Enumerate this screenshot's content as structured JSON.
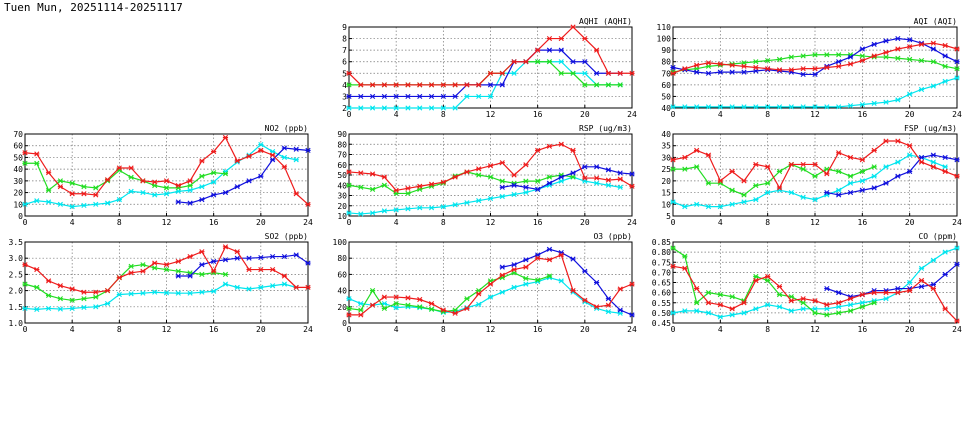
{
  "header": {
    "title": "Tuen Mun, 20251114-20251117"
  },
  "colors": {
    "day1": "#00e5ee",
    "day2": "#22dd22",
    "day3": "#1010dd",
    "day4": "#ee1c1c"
  },
  "chart_data": [
    {
      "type": "line",
      "title": "AQHI (AQHI)",
      "x_ticks": [
        0,
        4,
        8,
        12,
        16,
        20,
        24
      ],
      "ylim": [
        2,
        9
      ],
      "y_ticks": [
        2,
        3,
        4,
        5,
        6,
        7,
        8,
        9
      ],
      "series": [
        {
          "color": "#00e5ee",
          "values": [
            2,
            2,
            2,
            2,
            2,
            2,
            2,
            2,
            2,
            2,
            3,
            3,
            3,
            5,
            5,
            6,
            6,
            6,
            6,
            5,
            5,
            4,
            4,
            4
          ]
        },
        {
          "color": "#22dd22",
          "values": [
            4,
            4,
            4,
            4,
            4,
            4,
            4,
            4,
            4,
            4,
            4,
            4,
            5,
            5,
            6,
            6,
            6,
            6,
            5,
            5,
            4,
            4,
            4,
            4
          ]
        },
        {
          "color": "#1010dd",
          "values": [
            3,
            3,
            3,
            3,
            3,
            3,
            3,
            3,
            3,
            3,
            4,
            4,
            4,
            4,
            6,
            6,
            7,
            7,
            7,
            6,
            6,
            5,
            5,
            5
          ]
        },
        {
          "color": "#ee1c1c",
          "values": [
            5,
            4,
            4,
            4,
            4,
            4,
            4,
            4,
            4,
            4,
            4,
            4,
            5,
            5,
            6,
            6,
            7,
            8,
            8,
            9,
            8,
            7,
            5,
            5,
            5
          ]
        }
      ]
    },
    {
      "type": "line",
      "title": "AQI (AQI)",
      "x_ticks": [
        0,
        4,
        8,
        12,
        16,
        20,
        24
      ],
      "ylim": [
        40,
        110
      ],
      "y_ticks": [
        40,
        50,
        60,
        70,
        80,
        90,
        100,
        110
      ],
      "series": [
        {
          "color": "#00e5ee",
          "values": [
            41,
            41,
            41,
            41,
            41,
            41,
            41,
            41,
            41,
            41,
            41,
            41,
            41,
            41,
            41,
            42,
            43,
            44,
            45,
            47,
            52,
            56,
            59,
            63,
            66
          ]
        },
        {
          "color": "#22dd22",
          "values": [
            71,
            73,
            74,
            76,
            77,
            78,
            79,
            80,
            81,
            82,
            84,
            85,
            86,
            86,
            86,
            86,
            85,
            84,
            84,
            83,
            82,
            81,
            80,
            76,
            74
          ]
        },
        {
          "color": "#1010dd",
          "values": [
            75,
            73,
            71,
            70,
            71,
            71,
            71,
            72,
            73,
            72,
            71,
            69,
            69,
            76,
            80,
            84,
            91,
            95,
            98,
            100,
            99,
            96,
            91,
            85,
            80
          ]
        },
        {
          "color": "#ee1c1c",
          "values": [
            70,
            74,
            77,
            79,
            78,
            77,
            76,
            75,
            74,
            73,
            73,
            74,
            74,
            75,
            76,
            78,
            81,
            85,
            88,
            91,
            93,
            95,
            96,
            94,
            91
          ]
        }
      ]
    },
    {
      "type": "line",
      "title": "NO2 (ppb)",
      "x_ticks": [
        0,
        4,
        8,
        12,
        16,
        20,
        24
      ],
      "ylim": [
        0,
        70
      ],
      "y_ticks": [
        0,
        10,
        20,
        30,
        40,
        50,
        60,
        70
      ],
      "series": [
        {
          "color": "#00e5ee",
          "values": [
            10,
            13,
            12,
            10,
            8,
            9,
            10,
            11,
            14,
            21,
            20,
            18,
            19,
            21,
            22,
            25,
            29,
            38,
            46,
            52,
            61,
            55,
            50,
            48
          ]
        },
        {
          "color": "#22dd22",
          "values": [
            45,
            45,
            22,
            30,
            28,
            25,
            24,
            30,
            39,
            33,
            30,
            26,
            24,
            24,
            26,
            34,
            37,
            36,
            null,
            null,
            null,
            null,
            null,
            null
          ]
        },
        {
          "color": "#1010dd",
          "values": [
            null,
            null,
            null,
            null,
            null,
            null,
            null,
            null,
            null,
            null,
            null,
            null,
            null,
            12,
            11,
            14,
            18,
            20,
            25,
            30,
            34,
            48,
            58,
            57,
            56
          ]
        },
        {
          "color": "#ee1c1c",
          "values": [
            54,
            53,
            37,
            25,
            19,
            19,
            18,
            31,
            41,
            41,
            30,
            29,
            30,
            26,
            30,
            47,
            55,
            67,
            47,
            51,
            56,
            52,
            42,
            19,
            10
          ]
        }
      ]
    },
    {
      "type": "line",
      "title": "RSP (ug/m3)",
      "x_ticks": [
        0,
        4,
        8,
        12,
        16,
        20,
        24
      ],
      "ylim": [
        10,
        90
      ],
      "y_ticks": [
        10,
        20,
        30,
        40,
        50,
        60,
        70,
        80,
        90
      ],
      "series": [
        {
          "color": "#00e5ee",
          "values": [
            13,
            12,
            13,
            15,
            16,
            17,
            18,
            18,
            19,
            21,
            23,
            25,
            27,
            29,
            31,
            33,
            36,
            40,
            44,
            48,
            44,
            42,
            40,
            38
          ]
        },
        {
          "color": "#22dd22",
          "values": [
            40,
            38,
            36,
            40,
            32,
            32,
            36,
            39,
            42,
            49,
            53,
            50,
            48,
            44,
            42,
            44,
            44,
            48,
            50,
            48,
            null,
            null,
            null,
            null
          ]
        },
        {
          "color": "#1010dd",
          "values": [
            null,
            null,
            null,
            null,
            null,
            null,
            null,
            null,
            null,
            null,
            null,
            null,
            null,
            38,
            40,
            38,
            36,
            42,
            48,
            52,
            58,
            58,
            55,
            52,
            51
          ]
        },
        {
          "color": "#ee1c1c",
          "values": [
            53,
            52,
            51,
            48,
            35,
            37,
            39,
            41,
            43,
            48,
            53,
            56,
            59,
            62,
            50,
            60,
            74,
            78,
            80,
            74,
            47,
            47,
            45,
            46,
            39
          ]
        }
      ]
    },
    {
      "type": "line",
      "title": "FSP (ug/m3)",
      "x_ticks": [
        0,
        4,
        8,
        12,
        16,
        20,
        24
      ],
      "ylim": [
        5,
        40
      ],
      "y_ticks": [
        5,
        10,
        15,
        20,
        25,
        30,
        35,
        40
      ],
      "series": [
        {
          "color": "#00e5ee",
          "values": [
            11,
            9,
            10,
            9,
            9,
            10,
            11,
            12,
            15,
            16,
            15,
            13,
            12,
            14,
            16,
            19,
            20,
            22,
            26,
            28,
            31,
            30,
            28,
            26
          ]
        },
        {
          "color": "#22dd22",
          "values": [
            25,
            25,
            26,
            19,
            19,
            16,
            14,
            18,
            19,
            24,
            27,
            25,
            22,
            25,
            24,
            22,
            24,
            26,
            null,
            null,
            null,
            null,
            null,
            null
          ]
        },
        {
          "color": "#1010dd",
          "values": [
            null,
            null,
            null,
            null,
            null,
            null,
            null,
            null,
            null,
            null,
            null,
            null,
            null,
            15,
            14,
            15,
            16,
            17,
            19,
            22,
            24,
            30,
            31,
            30,
            29
          ]
        },
        {
          "color": "#ee1c1c",
          "values": [
            29,
            30,
            33,
            31,
            20,
            24,
            20,
            27,
            26,
            17,
            27,
            27,
            27,
            23,
            32,
            30,
            29,
            33,
            37,
            37,
            35,
            28,
            26,
            24,
            22
          ]
        }
      ]
    },
    {
      "type": "line",
      "title": "SO2 (ppb)",
      "x_ticks": [
        0,
        4,
        8,
        12,
        16,
        20,
        24
      ],
      "ylim": [
        1.0,
        3.5
      ],
      "y_ticks": [
        1.0,
        1.5,
        2.0,
        2.5,
        3.0,
        3.5
      ],
      "series": [
        {
          "color": "#00e5ee",
          "values": [
            1.45,
            1.42,
            1.45,
            1.43,
            1.45,
            1.48,
            1.5,
            1.6,
            1.88,
            1.9,
            1.92,
            1.95,
            1.93,
            1.92,
            1.92,
            1.95,
            1.98,
            2.2,
            2.1,
            2.05,
            2.1,
            2.15,
            2.2,
            2.1
          ]
        },
        {
          "color": "#22dd22",
          "values": [
            2.2,
            2.1,
            1.85,
            1.75,
            1.7,
            1.75,
            1.8,
            2.0,
            2.4,
            2.75,
            2.8,
            2.7,
            2.65,
            2.6,
            2.55,
            2.5,
            2.55,
            2.5,
            null,
            null,
            null,
            null,
            null,
            null
          ]
        },
        {
          "color": "#1010dd",
          "values": [
            null,
            null,
            null,
            null,
            null,
            null,
            null,
            null,
            null,
            null,
            null,
            null,
            null,
            2.45,
            2.45,
            2.8,
            2.9,
            2.95,
            3.0,
            3.0,
            3.02,
            3.05,
            3.05,
            3.1,
            2.85
          ]
        },
        {
          "color": "#ee1c1c",
          "values": [
            2.8,
            2.65,
            2.3,
            2.15,
            2.05,
            1.95,
            1.95,
            2.0,
            2.4,
            2.55,
            2.6,
            2.85,
            2.8,
            2.9,
            3.05,
            3.2,
            2.6,
            3.35,
            3.2,
            2.65,
            2.65,
            2.65,
            2.45,
            2.1,
            2.1
          ]
        }
      ]
    },
    {
      "type": "line",
      "title": "O3 (ppb)",
      "x_ticks": [
        0,
        4,
        8,
        12,
        16,
        20,
        24
      ],
      "ylim": [
        0,
        100
      ],
      "y_ticks": [
        0,
        20,
        40,
        60,
        80,
        100
      ],
      "series": [
        {
          "color": "#00e5ee",
          "values": [
            30,
            24,
            22,
            24,
            19,
            20,
            19,
            17,
            13,
            14,
            19,
            23,
            32,
            38,
            44,
            48,
            51,
            56,
            52,
            38,
            26,
            18,
            14,
            12
          ]
        },
        {
          "color": "#22dd22",
          "values": [
            18,
            16,
            40,
            18,
            24,
            22,
            20,
            17,
            14,
            16,
            30,
            40,
            52,
            56,
            62,
            55,
            53,
            58,
            null,
            null,
            null,
            null,
            null,
            null
          ]
        },
        {
          "color": "#1010dd",
          "values": [
            null,
            null,
            null,
            null,
            null,
            null,
            null,
            null,
            null,
            null,
            null,
            null,
            null,
            69,
            72,
            78,
            84,
            91,
            87,
            79,
            64,
            50,
            30,
            16,
            10
          ]
        },
        {
          "color": "#ee1c1c",
          "values": [
            10,
            10,
            22,
            32,
            32,
            31,
            29,
            24,
            16,
            12,
            18,
            36,
            48,
            59,
            66,
            69,
            80,
            78,
            84,
            40,
            28,
            20,
            22,
            42,
            48
          ]
        }
      ]
    },
    {
      "type": "line",
      "title": "CO (ppm)",
      "x_ticks": [
        0,
        4,
        8,
        12,
        16,
        20,
        24
      ],
      "ylim": [
        0.45,
        0.85
      ],
      "y_ticks": [
        0.45,
        0.5,
        0.55,
        0.6,
        0.65,
        0.7,
        0.75,
        0.8,
        0.85
      ],
      "series": [
        {
          "color": "#00e5ee",
          "values": [
            0.5,
            0.51,
            0.51,
            0.5,
            0.48,
            0.49,
            0.5,
            0.52,
            0.54,
            0.53,
            0.51,
            0.52,
            0.52,
            0.52,
            0.53,
            0.54,
            0.55,
            0.56,
            0.57,
            0.6,
            0.65,
            0.72,
            0.76,
            0.8,
            0.82
          ]
        },
        {
          "color": "#22dd22",
          "values": [
            0.82,
            0.78,
            0.55,
            0.6,
            0.59,
            0.58,
            0.56,
            0.68,
            0.66,
            0.59,
            0.58,
            0.55,
            0.5,
            0.49,
            0.5,
            0.51,
            0.53,
            0.55,
            null,
            null,
            null,
            null,
            null,
            null
          ]
        },
        {
          "color": "#1010dd",
          "values": [
            null,
            null,
            null,
            null,
            null,
            null,
            null,
            null,
            null,
            null,
            null,
            null,
            null,
            0.62,
            0.6,
            0.58,
            0.59,
            0.61,
            0.61,
            0.62,
            0.62,
            0.63,
            0.64,
            0.69,
            0.74
          ]
        },
        {
          "color": "#ee1c1c",
          "values": [
            0.73,
            0.72,
            0.62,
            0.55,
            0.54,
            0.52,
            0.55,
            0.66,
            0.68,
            0.63,
            0.56,
            0.57,
            0.56,
            0.54,
            0.55,
            0.57,
            0.59,
            0.6,
            0.6,
            0.6,
            0.61,
            0.66,
            0.62,
            0.52,
            0.46
          ]
        }
      ]
    }
  ]
}
